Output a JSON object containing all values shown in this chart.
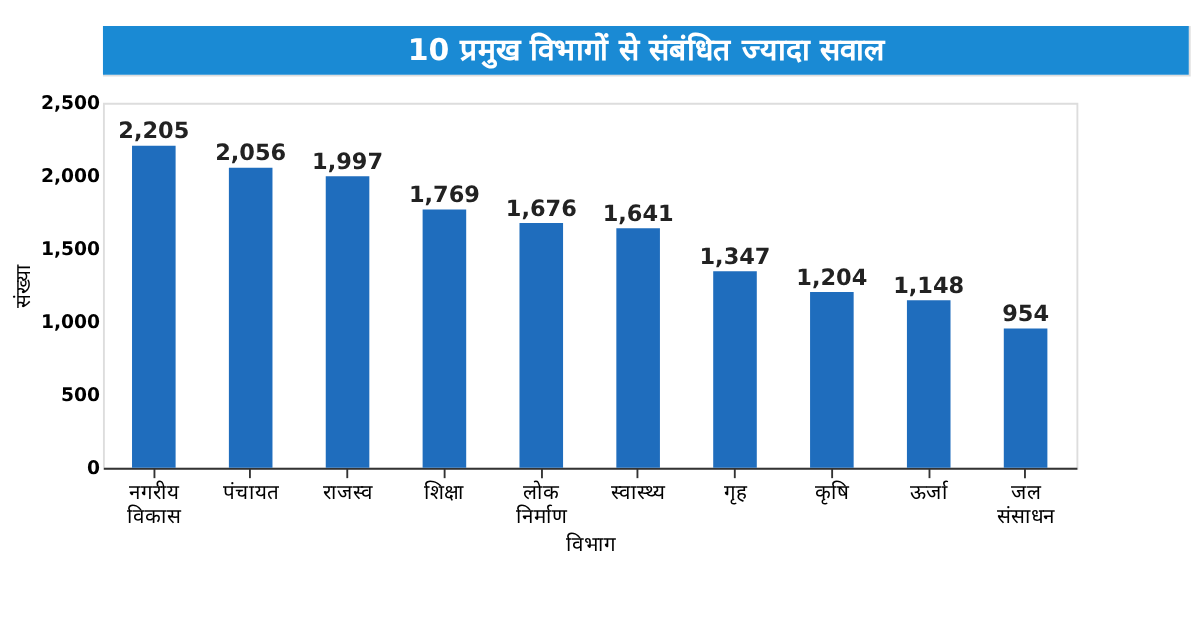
{
  "chart_data": {
    "type": "bar",
    "title": "10 प्रमुख विभागों से संबंधित ज्यादा सवाल",
    "ylabel": "संख्या",
    "xlabel": "विभाग",
    "categories": [
      "नगरीय विकास",
      "पंचायत",
      "राजस्व",
      "शिक्षा",
      "लोक निर्माण",
      "स्वास्थ्य",
      "गृह",
      "कृषि",
      "ऊर्जा",
      "जल संसाधन"
    ],
    "values": [
      2205,
      2056,
      1997,
      1769,
      1676,
      1641,
      1347,
      1204,
      1148,
      954
    ],
    "value_labels": [
      "2,205",
      "2,056",
      "1,997",
      "1,769",
      "1,676",
      "1,641",
      "1,347",
      "1,204",
      "1,148",
      "954"
    ],
    "color": "#1f6dbd",
    "ylim": [
      0,
      2500
    ],
    "yticks": [
      {
        "value": 0,
        "label": "0"
      },
      {
        "value": 500,
        "label": "500"
      },
      {
        "value": 1000,
        "label": "1,000"
      },
      {
        "value": 1500,
        "label": "1,500"
      },
      {
        "value": 2000,
        "label": "2,000"
      },
      {
        "value": 2500,
        "label": "2,500"
      }
    ],
    "grid": false
  }
}
